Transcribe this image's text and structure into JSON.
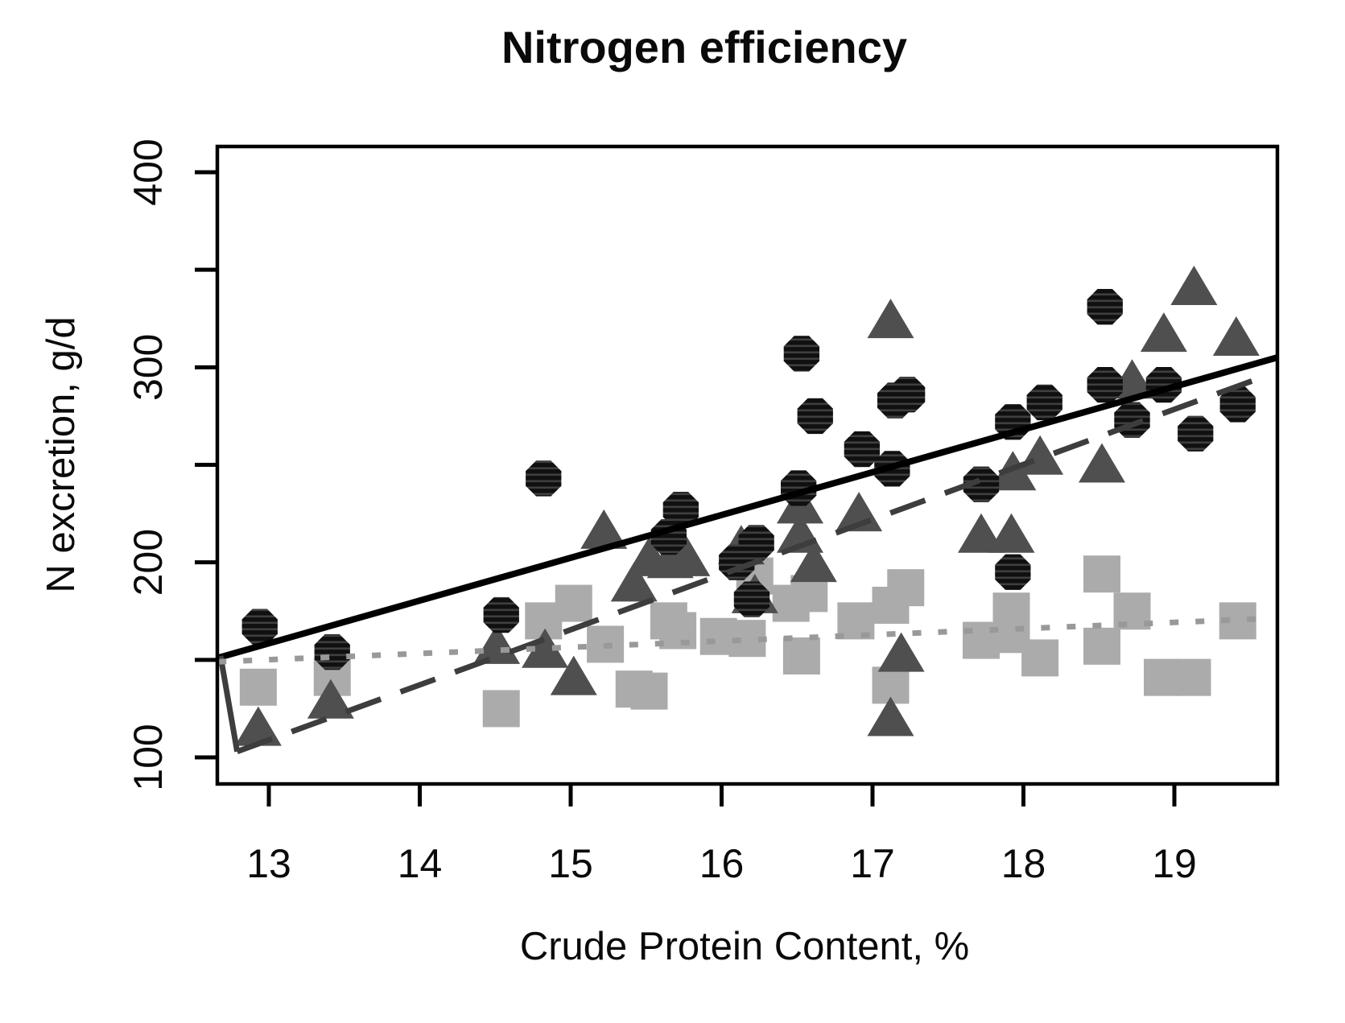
{
  "chart_data": {
    "type": "scatter",
    "title": "Nitrogen efficiency",
    "xlabel": "Crude Protein Content, %",
    "ylabel": "N excretion, g/d",
    "xlim": [
      12.65,
      19.7
    ],
    "ylim": [
      86,
      413
    ],
    "x_ticks": [
      13,
      14,
      15,
      16,
      17,
      18,
      19
    ],
    "y_ticks": [
      100,
      150,
      200,
      250,
      300,
      350,
      400
    ],
    "y_labeled_ticks": [
      100,
      200,
      300,
      400
    ],
    "grid": false,
    "legend": "none",
    "colors": {
      "circle_series": "#101010",
      "circle_stripe": "#3f3f3f",
      "triangle_series": "#4f4f4f",
      "square_series": "#ababab",
      "solid_line": "#000000",
      "dashed_line": "#3d3d3d",
      "dotted_line": "#999999",
      "axis": "#000000"
    },
    "series": [
      {
        "name": "squares",
        "marker": "square",
        "points": [
          [
            12.93,
            136
          ],
          [
            13.42,
            141
          ],
          [
            14.54,
            125
          ],
          [
            14.82,
            170
          ],
          [
            15.02,
            179
          ],
          [
            15.23,
            158
          ],
          [
            15.42,
            135
          ],
          [
            15.52,
            134
          ],
          [
            15.65,
            170
          ],
          [
            15.71,
            165
          ],
          [
            15.98,
            162
          ],
          [
            16.17,
            161
          ],
          [
            16.22,
            193
          ],
          [
            16.46,
            179
          ],
          [
            16.58,
            184
          ],
          [
            16.53,
            152
          ],
          [
            16.89,
            170
          ],
          [
            17.12,
            178
          ],
          [
            17.22,
            187
          ],
          [
            17.12,
            137
          ],
          [
            17.72,
            160
          ],
          [
            17.92,
            175
          ],
          [
            17.92,
            163
          ],
          [
            18.11,
            151
          ],
          [
            18.52,
            194
          ],
          [
            18.52,
            157
          ],
          [
            18.72,
            175
          ],
          [
            18.92,
            141
          ],
          [
            19.12,
            141
          ],
          [
            19.42,
            170
          ]
        ]
      },
      {
        "name": "triangles",
        "marker": "triangle",
        "points": [
          [
            12.93,
            115
          ],
          [
            13.41,
            129
          ],
          [
            14.51,
            157
          ],
          [
            14.83,
            155
          ],
          [
            15.02,
            141
          ],
          [
            15.22,
            216
          ],
          [
            15.42,
            189
          ],
          [
            15.52,
            202
          ],
          [
            15.66,
            201
          ],
          [
            15.77,
            202
          ],
          [
            16.13,
            208
          ],
          [
            16.22,
            183
          ],
          [
            16.52,
            229
          ],
          [
            16.52,
            214
          ],
          [
            16.61,
            199
          ],
          [
            16.91,
            225
          ],
          [
            17.12,
            324
          ],
          [
            17.19,
            153
          ],
          [
            17.12,
            120
          ],
          [
            17.72,
            214
          ],
          [
            17.92,
            214
          ],
          [
            17.93,
            246
          ],
          [
            18.11,
            254
          ],
          [
            18.52,
            250
          ],
          [
            18.72,
            293
          ],
          [
            18.93,
            317
          ],
          [
            19.13,
            341
          ],
          [
            19.41,
            315
          ]
        ]
      },
      {
        "name": "circles",
        "marker": "circle",
        "points": [
          [
            12.94,
            167
          ],
          [
            13.42,
            154
          ],
          [
            14.54,
            173
          ],
          [
            14.82,
            243
          ],
          [
            15.73,
            227
          ],
          [
            15.65,
            213
          ],
          [
            16.1,
            200
          ],
          [
            16.23,
            210
          ],
          [
            16.2,
            181
          ],
          [
            16.51,
            238
          ],
          [
            16.53,
            307
          ],
          [
            16.62,
            275
          ],
          [
            16.93,
            258
          ],
          [
            17.13,
            248
          ],
          [
            17.15,
            283
          ],
          [
            17.23,
            286
          ],
          [
            17.72,
            240
          ],
          [
            17.93,
            272
          ],
          [
            17.93,
            195
          ],
          [
            18.14,
            282
          ],
          [
            18.54,
            331
          ],
          [
            18.54,
            291
          ],
          [
            18.72,
            273
          ],
          [
            18.93,
            291
          ],
          [
            19.14,
            266
          ],
          [
            19.42,
            281
          ]
        ]
      }
    ],
    "lines": [
      {
        "name": "solid-regression-line",
        "style": "solid",
        "width": 8,
        "points": [
          [
            12.66,
            151
          ],
          [
            19.68,
            305
          ]
        ]
      },
      {
        "name": "dashed-regression-line",
        "style": "dashed",
        "width": 7,
        "dash": [
          46,
          26
        ],
        "points": [
          [
            12.68,
            152
          ],
          [
            12.79,
            103
          ],
          [
            19.55,
            294
          ]
        ]
      },
      {
        "name": "dotted-regression-line",
        "style": "dotted",
        "width": 7,
        "dash": [
          11,
          21
        ],
        "points": [
          [
            12.66,
            149
          ],
          [
            19.56,
            171
          ]
        ]
      }
    ]
  }
}
